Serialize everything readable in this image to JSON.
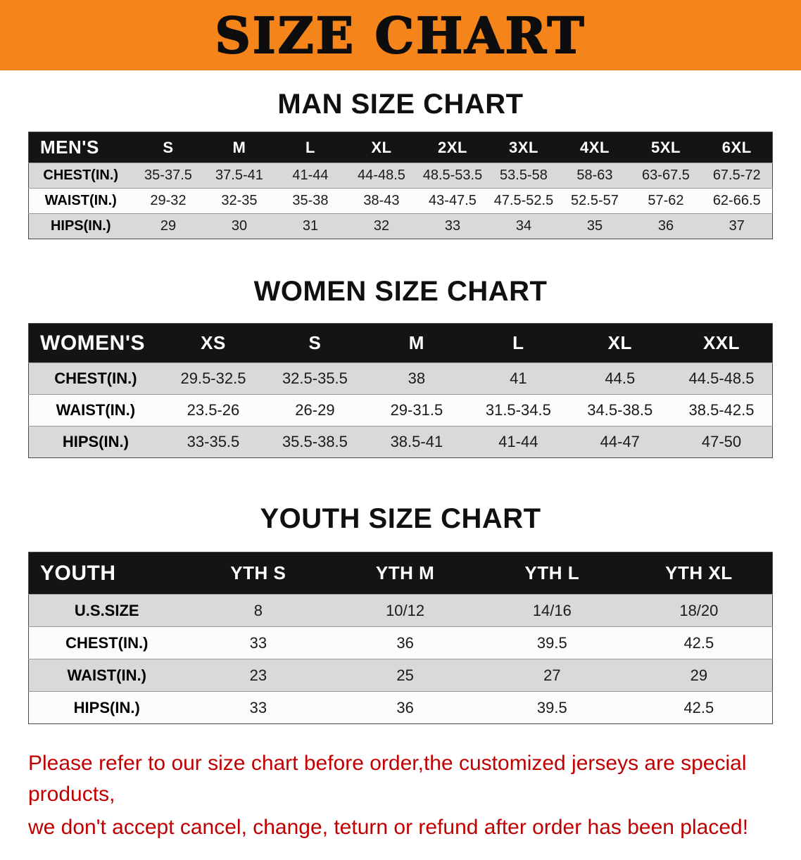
{
  "banner": {
    "title": "SIZE CHART"
  },
  "colors": {
    "banner-bg": "#F5851B",
    "header-bg": "#141414",
    "row-shaded": "#D9D9D9",
    "notice-red": "#C00000"
  },
  "sections": [
    {
      "heading": "MAN SIZE CHART",
      "table": {
        "header": [
          "MEN'S",
          "S",
          "M",
          "L",
          "XL",
          "2XL",
          "3XL",
          "4XL",
          "5XL",
          "6XL"
        ],
        "rows": [
          {
            "label": "CHEST(IN.)",
            "values": [
              "35-37.5",
              "37.5-41",
              "41-44",
              "44-48.5",
              "48.5-53.5",
              "53.5-58",
              "58-63",
              "63-67.5",
              "67.5-72"
            ]
          },
          {
            "label": "WAIST(IN.)",
            "values": [
              "29-32",
              "32-35",
              "35-38",
              "38-43",
              "43-47.5",
              "47.5-52.5",
              "52.5-57",
              "57-62",
              "62-66.5"
            ]
          },
          {
            "label": "HIPS(IN.)",
            "values": [
              "29",
              "30",
              "31",
              "32",
              "33",
              "34",
              "35",
              "36",
              "37"
            ]
          }
        ]
      }
    },
    {
      "heading": "WOMEN SIZE CHART",
      "table": {
        "header": [
          "WOMEN'S",
          "XS",
          "S",
          "M",
          "L",
          "XL",
          "XXL"
        ],
        "rows": [
          {
            "label": "CHEST(IN.)",
            "values": [
              "29.5-32.5",
              "32.5-35.5",
              "38",
              "41",
              "44.5",
              "44.5-48.5"
            ]
          },
          {
            "label": "WAIST(IN.)",
            "values": [
              "23.5-26",
              "26-29",
              "29-31.5",
              "31.5-34.5",
              "34.5-38.5",
              "38.5-42.5"
            ]
          },
          {
            "label": "HIPS(IN.)",
            "values": [
              "33-35.5",
              "35.5-38.5",
              "38.5-41",
              "41-44",
              "44-47",
              "47-50"
            ]
          }
        ]
      }
    },
    {
      "heading": "YOUTH SIZE CHART",
      "table": {
        "header": [
          "YOUTH",
          "YTH S",
          "YTH M",
          "YTH L",
          "YTH XL"
        ],
        "rows": [
          {
            "label": "U.S.SIZE",
            "values": [
              "8",
              "10/12",
              "14/16",
              "18/20"
            ]
          },
          {
            "label": "CHEST(IN.)",
            "values": [
              "33",
              "36",
              "39.5",
              "42.5"
            ]
          },
          {
            "label": "WAIST(IN.)",
            "values": [
              "23",
              "25",
              "27",
              "29"
            ]
          },
          {
            "label": "HIPS(IN.)",
            "values": [
              "33",
              "36",
              "39.5",
              "42.5"
            ]
          }
        ]
      }
    }
  ],
  "footer": {
    "line1": "Please refer to our size chart before order,the customized jerseys are special products,",
    "line2": "we don't accept cancel, change, teturn or refund after order has been placed!"
  }
}
